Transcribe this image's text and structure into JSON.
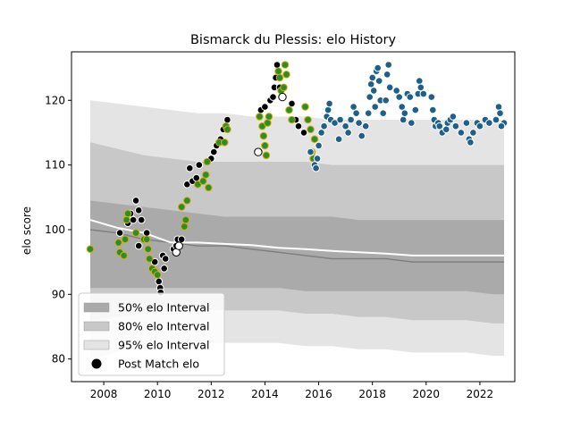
{
  "chart_data": {
    "type": "scatter",
    "title": "Bismarck du Plessis: elo History",
    "xlabel": "",
    "ylabel": "elo score",
    "xlim": [
      2006.8,
      2023.3
    ],
    "ylim": [
      76.5,
      127.5
    ],
    "x_ticks": [
      2008,
      2010,
      2012,
      2014,
      2016,
      2018,
      2020,
      2022
    ],
    "y_ticks": [
      80,
      90,
      100,
      110,
      120
    ],
    "grid": false,
    "legend_position": "lower-left",
    "legend": [
      {
        "label": "50% elo Interval",
        "color": "#aaaaaa"
      },
      {
        "label": "80% elo Interval",
        "color": "#c8c8c8"
      },
      {
        "label": "95% elo Interval",
        "color": "#e4e4e4"
      },
      {
        "label": "Post Match elo",
        "color": "#000000"
      }
    ],
    "marker_colors": {
      "black": "#000000",
      "green": "#2e8b2e",
      "blue": "#1f5f8b",
      "white": "#ffffff",
      "gold_edge": "#d4b000",
      "white_edge": "#ffffff"
    },
    "band_colors": {
      "b95": "#e4e4e4",
      "b80": "#c8c8c8",
      "b50": "#aaaaaa",
      "median_dark": "#808080",
      "mean_white": "#ffffff"
    },
    "intervals": {
      "x": [
        2007.5,
        2008.5,
        2009.5,
        2010.5,
        2011.5,
        2012.5,
        2013.5,
        2014.5,
        2015.5,
        2016.5,
        2017.5,
        2018.5,
        2019.5,
        2020.5,
        2021.5,
        2022.5,
        2022.9
      ],
      "p95_low": [
        80,
        81,
        82,
        82.5,
        82.5,
        82.5,
        82.5,
        82.5,
        82,
        82,
        81.5,
        81.5,
        81,
        81,
        81,
        80.5,
        80.5
      ],
      "p95_high": [
        120,
        119.5,
        119,
        118.5,
        118,
        118,
        117.5,
        117.5,
        117.5,
        117,
        117,
        117,
        117,
        117,
        117,
        117,
        117
      ],
      "p80_low": [
        86,
        86.5,
        87,
        87.5,
        87.5,
        87.5,
        87.5,
        87.5,
        87,
        87,
        86.5,
        86.5,
        86,
        86,
        86,
        85.5,
        85.5
      ],
      "p80_high": [
        113.5,
        112.5,
        111.5,
        111,
        110.5,
        110.5,
        110.5,
        110.5,
        110.5,
        110,
        110,
        110,
        110,
        110,
        110,
        110,
        110
      ],
      "p50_low": [
        91,
        91,
        91,
        91,
        91,
        91,
        91,
        91,
        90.5,
        90.5,
        90.5,
        90.5,
        90.5,
        90.5,
        90.5,
        90,
        90
      ],
      "p50_high": [
        104.5,
        104,
        103.5,
        103,
        102.5,
        102,
        102,
        102,
        102,
        102,
        101.5,
        101.5,
        101.5,
        101.5,
        101.5,
        101.5,
        101.5
      ],
      "median": [
        100,
        99.5,
        98.5,
        98,
        97.5,
        97.5,
        97,
        96.5,
        96,
        95.5,
        95.5,
        95.5,
        95,
        95,
        95,
        95,
        95
      ],
      "mean": [
        101.5,
        100.3,
        99.5,
        98,
        98,
        97.8,
        97.6,
        97.2,
        97,
        96.7,
        96.5,
        96.3,
        96,
        96,
        96,
        96,
        96
      ]
    },
    "series": [
      {
        "color": "black",
        "points": [
          [
            2008.6,
            99.5
          ],
          [
            2008.9,
            101.0
          ],
          [
            2009.0,
            102.5
          ],
          [
            2009.1,
            101.5
          ],
          [
            2009.2,
            104.5
          ],
          [
            2009.3,
            103.0
          ],
          [
            2009.4,
            101.5
          ],
          [
            2009.3,
            97.5
          ],
          [
            2009.6,
            99.5
          ],
          [
            2009.9,
            95.0
          ],
          [
            2010.0,
            93.0
          ],
          [
            2010.05,
            92.0
          ],
          [
            2010.1,
            91.0
          ],
          [
            2010.12,
            90.3
          ],
          [
            2010.2,
            96.0
          ],
          [
            2010.25,
            94.0
          ],
          [
            2010.3,
            95.5
          ],
          [
            2010.6,
            97.0
          ],
          [
            2010.7,
            97.5
          ],
          [
            2010.75,
            98.5
          ],
          [
            2010.9,
            98.5
          ],
          [
            2011.1,
            107.0
          ],
          [
            2011.2,
            109.5
          ],
          [
            2011.3,
            107.5
          ],
          [
            2011.45,
            108.0
          ],
          [
            2011.55,
            110.0
          ],
          [
            2012.0,
            111.0
          ],
          [
            2012.1,
            112.0
          ],
          [
            2012.2,
            113.0
          ],
          [
            2012.35,
            114.0
          ],
          [
            2012.45,
            115.5
          ],
          [
            2012.6,
            117.0
          ],
          [
            2013.85,
            118.5
          ],
          [
            2014.0,
            119.0
          ],
          [
            2014.2,
            120.0
          ],
          [
            2014.3,
            120.5
          ],
          [
            2014.35,
            122.0
          ],
          [
            2014.4,
            123.5
          ],
          [
            2014.45,
            125.5
          ],
          [
            2014.5,
            124.5
          ],
          [
            2014.55,
            122.0
          ],
          [
            2014.6,
            121.5
          ],
          [
            2015.0,
            119.5
          ],
          [
            2015.15,
            117.0
          ],
          [
            2015.25,
            116.0
          ],
          [
            2015.45,
            115.0
          ]
        ]
      },
      {
        "color": "green",
        "points": [
          [
            2007.5,
            97.0
          ],
          [
            2008.55,
            98.0
          ],
          [
            2008.6,
            96.5
          ],
          [
            2008.75,
            96.0
          ],
          [
            2008.8,
            98.5
          ],
          [
            2008.85,
            101.5
          ],
          [
            2008.9,
            102.5
          ],
          [
            2009.2,
            99.5
          ],
          [
            2009.5,
            98.5
          ],
          [
            2009.6,
            98.5
          ],
          [
            2009.65,
            97.0
          ],
          [
            2009.7,
            95.5
          ],
          [
            2009.8,
            94.0
          ],
          [
            2009.9,
            93.5
          ],
          [
            2010.0,
            93.0
          ],
          [
            2010.9,
            103.5
          ],
          [
            2011.0,
            100.5
          ],
          [
            2011.05,
            101.5
          ],
          [
            2011.1,
            104.5
          ],
          [
            2011.5,
            107.0
          ],
          [
            2011.7,
            107.5
          ],
          [
            2011.8,
            108.5
          ],
          [
            2011.85,
            110.5
          ],
          [
            2011.9,
            106.5
          ],
          [
            2012.3,
            113.5
          ],
          [
            2012.5,
            113.5
          ],
          [
            2012.55,
            116.0
          ],
          [
            2012.6,
            115.5
          ],
          [
            2013.8,
            117.5
          ],
          [
            2013.9,
            116.0
          ],
          [
            2013.95,
            114.5
          ],
          [
            2014.0,
            113.0
          ],
          [
            2014.05,
            111.5
          ],
          [
            2014.1,
            116.5
          ],
          [
            2014.15,
            117.5
          ],
          [
            2014.5,
            124.5
          ],
          [
            2014.55,
            123.5
          ],
          [
            2014.6,
            121.5
          ],
          [
            2014.7,
            122.0
          ],
          [
            2014.75,
            125.5
          ],
          [
            2014.8,
            124.0
          ],
          [
            2014.9,
            118.5
          ],
          [
            2015.0,
            117.0
          ],
          [
            2015.5,
            119.0
          ],
          [
            2015.6,
            117.0
          ],
          [
            2015.7,
            115.5
          ],
          [
            2015.75,
            112.0
          ],
          [
            2015.8,
            111.0
          ],
          [
            2015.85,
            114.0
          ]
        ]
      },
      {
        "color": "blue",
        "points": [
          [
            2015.7,
            112.0
          ],
          [
            2015.85,
            110.0
          ],
          [
            2015.9,
            109.5
          ],
          [
            2015.95,
            111.0
          ],
          [
            2016.0,
            113.0
          ],
          [
            2016.1,
            115.0
          ],
          [
            2016.2,
            116.0
          ],
          [
            2016.3,
            117.5
          ],
          [
            2016.35,
            118.5
          ],
          [
            2016.4,
            119.5
          ],
          [
            2016.45,
            117.0
          ],
          [
            2016.6,
            116.5
          ],
          [
            2016.75,
            114.0
          ],
          [
            2016.8,
            117.0
          ],
          [
            2017.0,
            116.0
          ],
          [
            2017.1,
            115.0
          ],
          [
            2017.2,
            117.0
          ],
          [
            2017.3,
            119.0
          ],
          [
            2017.4,
            118.0
          ],
          [
            2017.5,
            116.5
          ],
          [
            2017.6,
            114.5
          ],
          [
            2017.75,
            116.0
          ],
          [
            2017.85,
            118.0
          ],
          [
            2017.9,
            120.5
          ],
          [
            2017.95,
            122.5
          ],
          [
            2018.0,
            123.5
          ],
          [
            2018.05,
            121.5
          ],
          [
            2018.1,
            119.0
          ],
          [
            2018.15,
            124.5
          ],
          [
            2018.2,
            125.0
          ],
          [
            2018.25,
            123.0
          ],
          [
            2018.3,
            120.0
          ],
          [
            2018.4,
            118.0
          ],
          [
            2018.5,
            120.0
          ],
          [
            2018.55,
            124.0
          ],
          [
            2018.6,
            125.5
          ],
          [
            2018.65,
            122.0
          ],
          [
            2018.9,
            121.5
          ],
          [
            2019.0,
            120.5
          ],
          [
            2019.1,
            119.0
          ],
          [
            2019.15,
            117.0
          ],
          [
            2019.2,
            118.0
          ],
          [
            2019.3,
            121.0
          ],
          [
            2019.4,
            120.5
          ],
          [
            2019.45,
            116.5
          ],
          [
            2019.6,
            118.5
          ],
          [
            2019.7,
            121.0
          ],
          [
            2019.75,
            123.0
          ],
          [
            2019.8,
            122.0
          ],
          [
            2019.9,
            121.0
          ],
          [
            2020.2,
            120.5
          ],
          [
            2020.25,
            118.5
          ],
          [
            2020.3,
            117.0
          ],
          [
            2020.35,
            116.0
          ],
          [
            2020.45,
            116.5
          ],
          [
            2020.5,
            116.0
          ],
          [
            2020.6,
            115.0
          ],
          [
            2020.75,
            115.5
          ],
          [
            2020.8,
            116.5
          ],
          [
            2020.9,
            117.0
          ],
          [
            2021.0,
            117.5
          ],
          [
            2021.1,
            116.0
          ],
          [
            2021.3,
            115.0
          ],
          [
            2021.5,
            116.5
          ],
          [
            2021.6,
            114.0
          ],
          [
            2021.65,
            113.5
          ],
          [
            2021.75,
            115.0
          ],
          [
            2021.9,
            116.5
          ],
          [
            2022.0,
            116.0
          ],
          [
            2022.2,
            117.0
          ],
          [
            2022.35,
            116.5
          ],
          [
            2022.6,
            117.0
          ],
          [
            2022.7,
            119.0
          ],
          [
            2022.75,
            118.0
          ],
          [
            2022.9,
            116.5
          ],
          [
            2022.8,
            116.0
          ]
        ]
      },
      {
        "color": "white",
        "points": [
          [
            2010.7,
            96.5
          ],
          [
            2010.8,
            97.5
          ],
          [
            2013.75,
            112.0
          ],
          [
            2014.65,
            120.5
          ]
        ]
      }
    ]
  }
}
